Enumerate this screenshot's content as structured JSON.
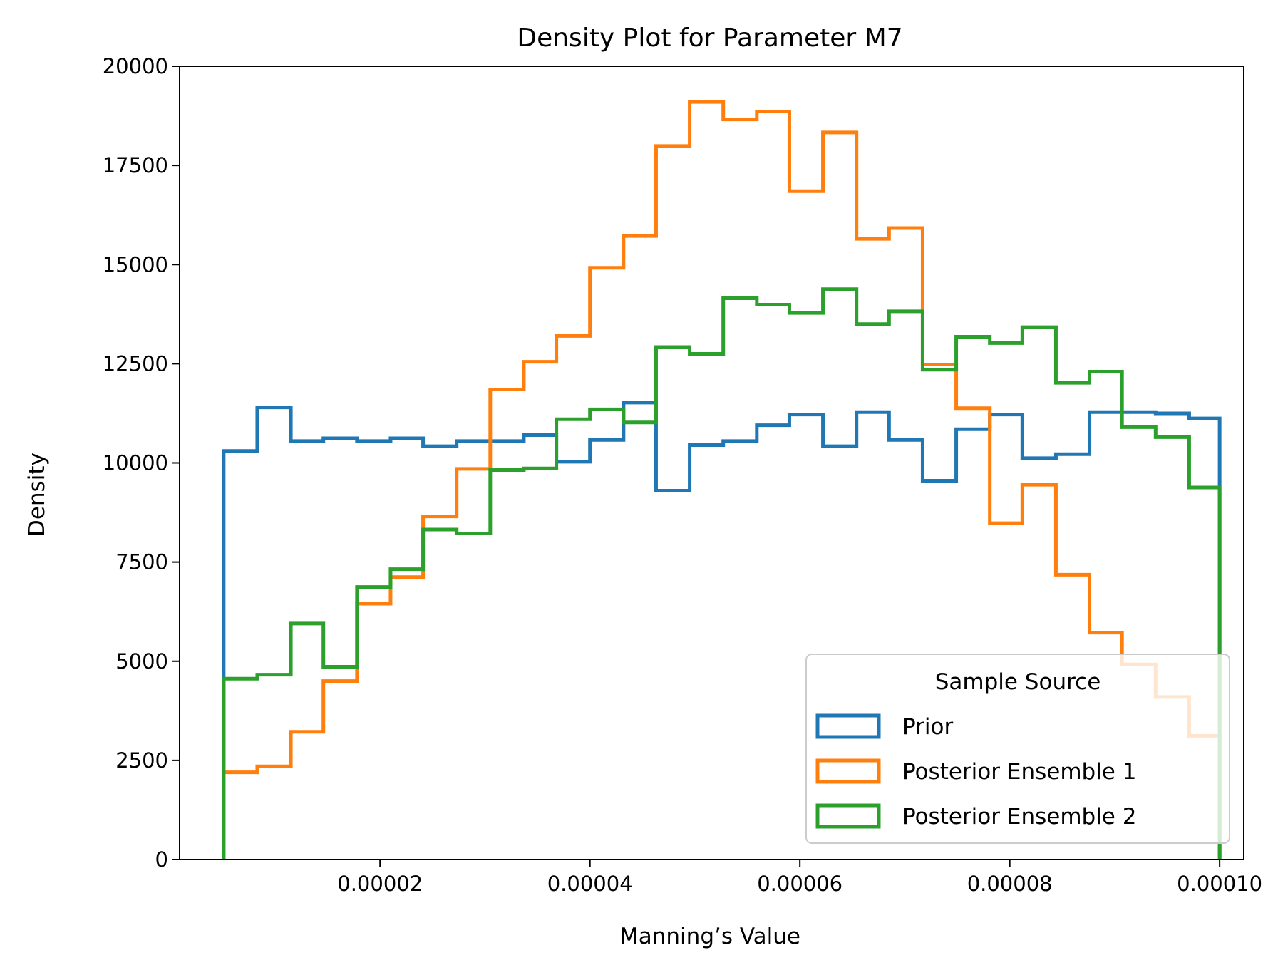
{
  "chart_data": {
    "type": "histogram-step",
    "title": "Density Plot for Parameter M7",
    "xlabel": "Manning’s Value",
    "ylabel": "Density",
    "xlim": [
      9e-07,
      0.0001023
    ],
    "ylim": [
      0,
      20000
    ],
    "xticks": [
      2e-05,
      4e-05,
      6e-05,
      8e-05,
      0.0001
    ],
    "xtick_labels": [
      "0.00002",
      "0.00004",
      "0.00006",
      "0.00008",
      "0.00010"
    ],
    "yticks": [
      0,
      2500,
      5000,
      7500,
      10000,
      12500,
      15000,
      17500,
      20000
    ],
    "ytick_labels": [
      "0",
      "2500",
      "5000",
      "7500",
      "10000",
      "12500",
      "15000",
      "17500",
      "20000"
    ],
    "bin_edges": [
      5.1e-06,
      8.3e-06,
      1.15e-05,
      1.46e-05,
      1.78e-05,
      2.1e-05,
      2.41e-05,
      2.73e-05,
      3.05e-05,
      3.37e-05,
      3.68e-05,
      4e-05,
      4.32e-05,
      4.63e-05,
      4.95e-05,
      5.27e-05,
      5.59e-05,
      5.9e-05,
      6.22e-05,
      6.54e-05,
      6.85e-05,
      7.17e-05,
      7.49e-05,
      7.81e-05,
      8.12e-05,
      8.44e-05,
      8.76e-05,
      9.07e-05,
      9.39e-05,
      9.71e-05,
      0.0001
    ],
    "legend": {
      "title": "Sample Source",
      "position": "lower right"
    },
    "grid": false,
    "series": [
      {
        "name": "Prior",
        "color": "#1f77b4",
        "values": [
          10300,
          11400,
          10550,
          10620,
          10550,
          10620,
          10420,
          10550,
          10550,
          10700,
          10030,
          10580,
          11520,
          9300,
          10450,
          10550,
          10950,
          11220,
          10420,
          11280,
          10580,
          9550,
          10850,
          11220,
          10120,
          10220,
          11280,
          11280,
          11250,
          11120
        ]
      },
      {
        "name": "Posterior Ensemble 1",
        "color": "#ff7f0e",
        "values": [
          2200,
          2350,
          3220,
          4500,
          6450,
          7120,
          8650,
          9850,
          11850,
          12550,
          13200,
          14920,
          15720,
          17990,
          19100,
          18660,
          18860,
          16850,
          18330,
          15650,
          15920,
          12480,
          11380,
          8480,
          9450,
          7180,
          5720,
          4920,
          4100,
          3120
        ]
      },
      {
        "name": "Posterior Ensemble 2",
        "color": "#2ca02c",
        "values": [
          4560,
          4660,
          5950,
          4860,
          6870,
          7320,
          8320,
          8220,
          9820,
          9860,
          11100,
          11350,
          11020,
          12920,
          12750,
          14150,
          13990,
          13780,
          14380,
          13500,
          13820,
          12350,
          13180,
          13020,
          13420,
          12020,
          12300,
          10900,
          10650,
          9380
        ]
      }
    ]
  }
}
